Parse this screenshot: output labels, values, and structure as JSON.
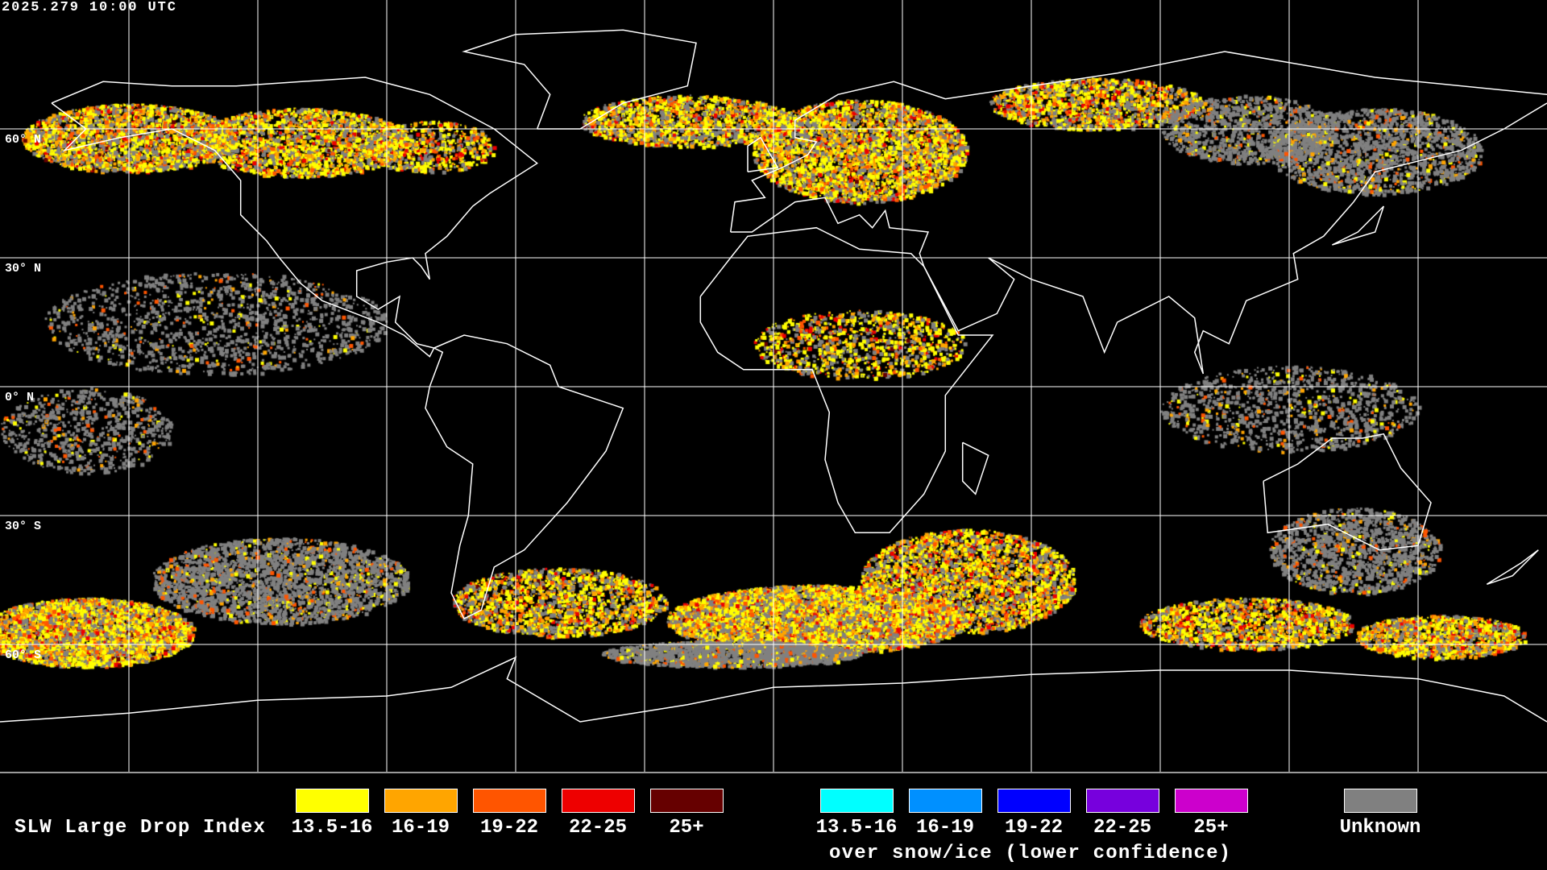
{
  "title": "2025.279 10:00 UTC",
  "lat_labels": [
    "60° N",
    "30° N",
    "0° N",
    "30° S",
    "60° S"
  ],
  "legend": {
    "label": "SLW Large Drop Index",
    "primary": [
      {
        "label": "13.5-16",
        "color": "#ffff00"
      },
      {
        "label": "16-19",
        "color": "#ffa500"
      },
      {
        "label": "19-22",
        "color": "#ff5500"
      },
      {
        "label": "22-25",
        "color": "#ee0000"
      },
      {
        "label": "25+",
        "color": "#660000"
      }
    ],
    "snow_ice": [
      {
        "label": "13.5-16",
        "color": "#00ffff"
      },
      {
        "label": "16-19",
        "color": "#0090ff"
      },
      {
        "label": "19-22",
        "color": "#0000ff"
      },
      {
        "label": "22-25",
        "color": "#7700dd"
      },
      {
        "label": "25+",
        "color": "#cc00cc"
      }
    ],
    "snow_ice_caption": "over snow/ice (lower confidence)",
    "unknown": {
      "label": "Unknown",
      "color": "#808080"
    }
  },
  "map": {
    "projection": "equirectangular",
    "grid_spacing_deg": 30,
    "background": "#000000",
    "coastline_color": "#ffffff"
  }
}
